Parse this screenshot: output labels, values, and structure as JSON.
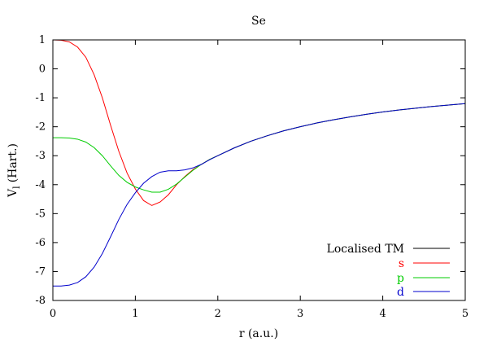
{
  "chart_data": {
    "type": "line",
    "title": "Se",
    "xlabel": "r (a.u.)",
    "ylabel_main": "V",
    "ylabel_sub": "l",
    "ylabel_unit": "(Hart.)",
    "xlim": [
      0,
      5
    ],
    "ylim": [
      -8,
      1
    ],
    "xticks": [
      0,
      1,
      2,
      3,
      4,
      5
    ],
    "yticks": [
      -8,
      -7,
      -6,
      -5,
      -4,
      -3,
      -2,
      -1,
      0,
      1
    ],
    "grid": false,
    "legend_title": "Localised TM",
    "legend_title_color": "#000000",
    "legend_position": "bottom-right",
    "series": [
      {
        "name": "s",
        "color": "#ff0000",
        "x": [
          0,
          0.1,
          0.2,
          0.3,
          0.4,
          0.5,
          0.6,
          0.7,
          0.8,
          0.9,
          1.0,
          1.1,
          1.2,
          1.3,
          1.4,
          1.5,
          1.6,
          1.7,
          1.8,
          1.9,
          2.0,
          2.2,
          2.4,
          2.6,
          2.8,
          3.0,
          3.2,
          3.4,
          3.6,
          3.8,
          4.0,
          4.2,
          4.4,
          4.6,
          4.8,
          5.0
        ],
        "values": [
          1.0,
          0.99,
          0.93,
          0.75,
          0.4,
          -0.2,
          -1.0,
          -1.95,
          -2.85,
          -3.6,
          -4.15,
          -4.55,
          -4.72,
          -4.6,
          -4.35,
          -4.0,
          -3.72,
          -3.48,
          -3.3,
          -3.13,
          -3.0,
          -2.73,
          -2.5,
          -2.31,
          -2.14,
          -2.0,
          -1.87,
          -1.76,
          -1.66,
          -1.57,
          -1.49,
          -1.42,
          -1.36,
          -1.3,
          -1.25,
          -1.2
        ]
      },
      {
        "name": "p",
        "color": "#00cc00",
        "x": [
          0,
          0.1,
          0.2,
          0.3,
          0.4,
          0.5,
          0.6,
          0.7,
          0.8,
          0.9,
          1.0,
          1.1,
          1.2,
          1.3,
          1.4,
          1.5,
          1.6,
          1.7,
          1.8,
          1.9,
          2.0,
          2.2,
          2.4,
          2.6,
          2.8,
          3.0,
          3.2,
          3.4,
          3.6,
          3.8,
          4.0,
          4.2,
          4.4,
          4.6,
          4.8,
          5.0
        ],
        "values": [
          -2.38,
          -2.38,
          -2.39,
          -2.43,
          -2.53,
          -2.72,
          -3.0,
          -3.35,
          -3.68,
          -3.92,
          -4.08,
          -4.18,
          -4.26,
          -4.26,
          -4.16,
          -3.98,
          -3.74,
          -3.5,
          -3.3,
          -3.13,
          -3.0,
          -2.73,
          -2.5,
          -2.31,
          -2.14,
          -2.0,
          -1.87,
          -1.76,
          -1.66,
          -1.57,
          -1.49,
          -1.42,
          -1.36,
          -1.3,
          -1.25,
          -1.2
        ]
      },
      {
        "name": "d",
        "color": "#0000cc",
        "x": [
          0,
          0.1,
          0.2,
          0.3,
          0.4,
          0.5,
          0.6,
          0.7,
          0.8,
          0.9,
          1.0,
          1.1,
          1.2,
          1.3,
          1.4,
          1.5,
          1.6,
          1.7,
          1.8,
          1.9,
          2.0,
          2.2,
          2.4,
          2.6,
          2.8,
          3.0,
          3.2,
          3.4,
          3.6,
          3.8,
          4.0,
          4.2,
          4.4,
          4.6,
          4.8,
          5.0
        ],
        "values": [
          -7.5,
          -7.5,
          -7.47,
          -7.38,
          -7.18,
          -6.85,
          -6.38,
          -5.8,
          -5.2,
          -4.68,
          -4.28,
          -3.95,
          -3.72,
          -3.57,
          -3.52,
          -3.52,
          -3.49,
          -3.42,
          -3.3,
          -3.14,
          -3.0,
          -2.73,
          -2.5,
          -2.31,
          -2.14,
          -2.0,
          -1.87,
          -1.76,
          -1.66,
          -1.57,
          -1.49,
          -1.42,
          -1.36,
          -1.3,
          -1.25,
          -1.2
        ]
      }
    ]
  }
}
